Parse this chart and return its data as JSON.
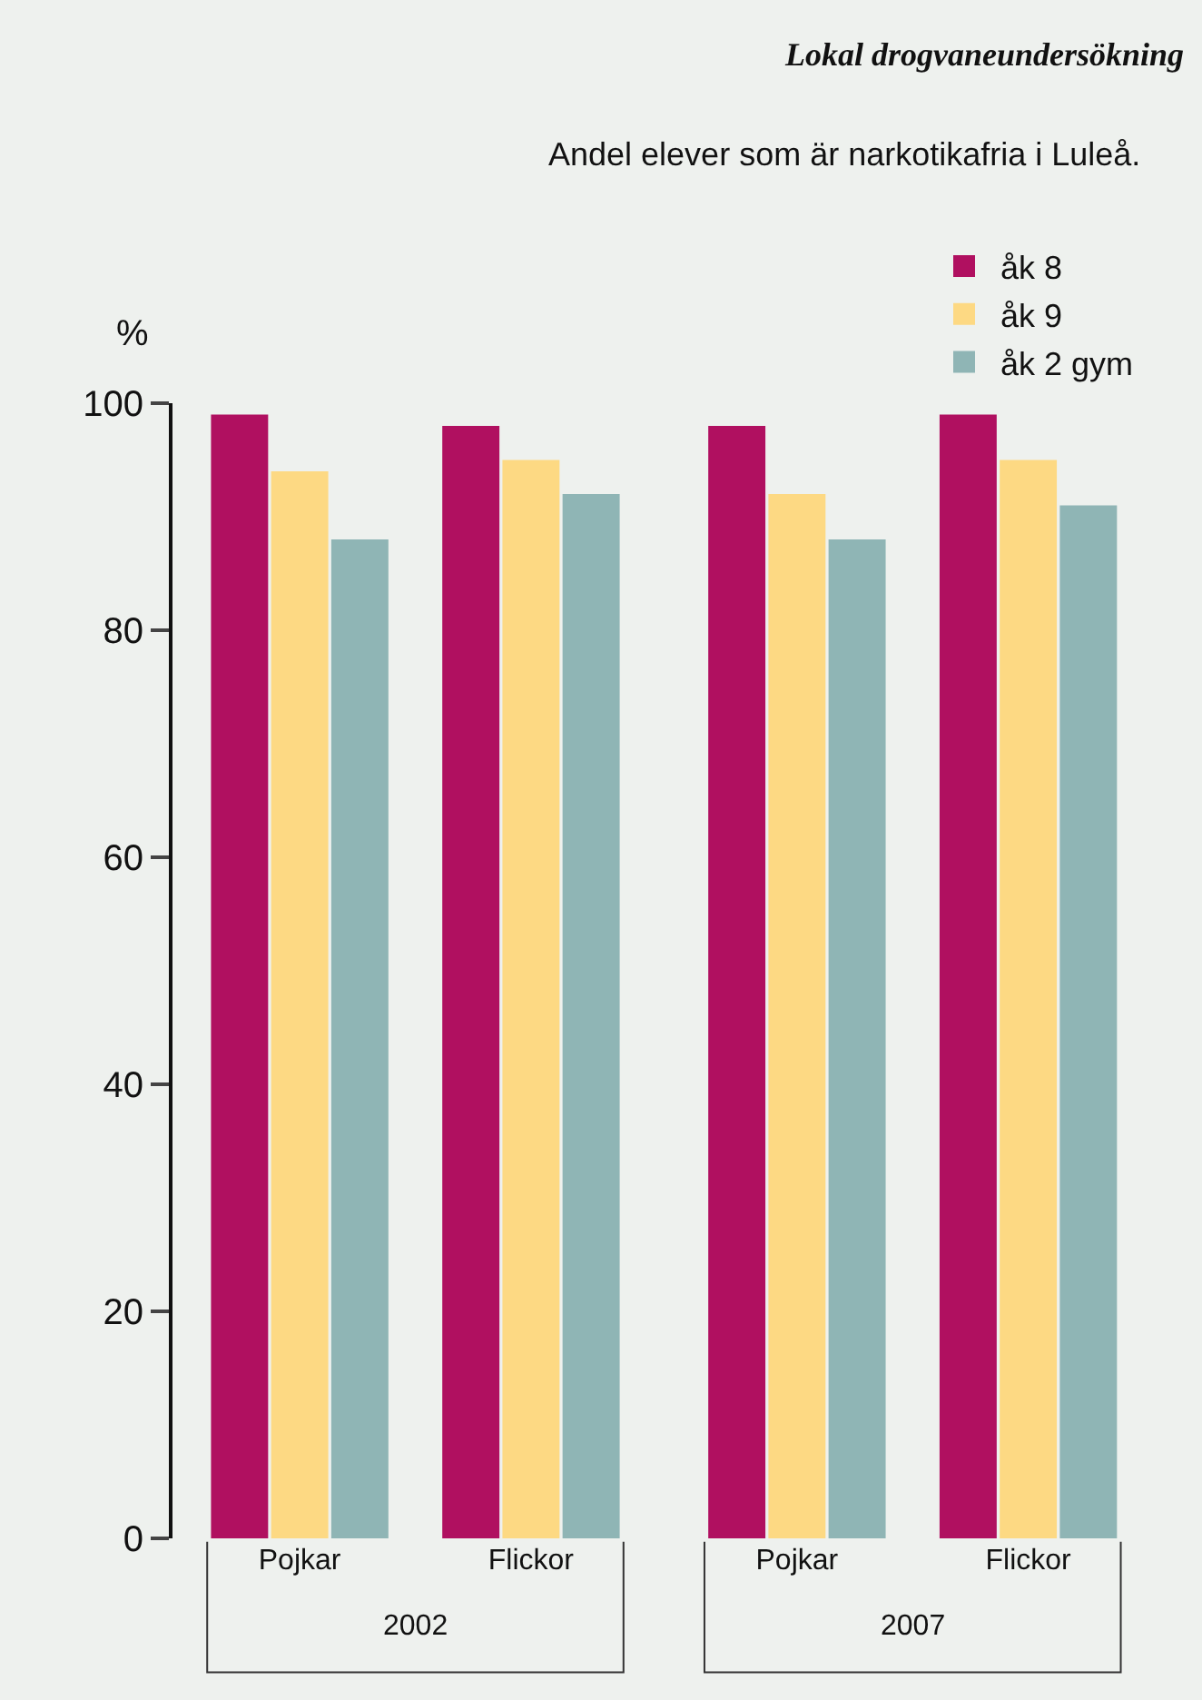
{
  "chart_data": {
    "type": "bar",
    "title": "Lokal drogvaneundersökning",
    "subtitle": "Andel elever som är narkotikafria i Luleå.",
    "ylabel": "%",
    "categories": [
      "Pojkar",
      "Flickor",
      "Pojkar",
      "Flickor"
    ],
    "series": [
      {
        "name": "åk 8",
        "color": "#b01060",
        "values": [
          99,
          98,
          98,
          99
        ]
      },
      {
        "name": "åk 9",
        "color": "#fdd983",
        "values": [
          94,
          95,
          92,
          95
        ]
      },
      {
        "name": "åk 2 gym",
        "color": "#8fb5b5",
        "values": [
          88,
          92,
          88,
          91
        ]
      }
    ],
    "annotations": [
      "2002",
      "2007"
    ],
    "ylim": [
      0,
      100
    ],
    "yticks": [
      0,
      20,
      40,
      60,
      80,
      100
    ],
    "grid": false,
    "legend": "top right"
  }
}
